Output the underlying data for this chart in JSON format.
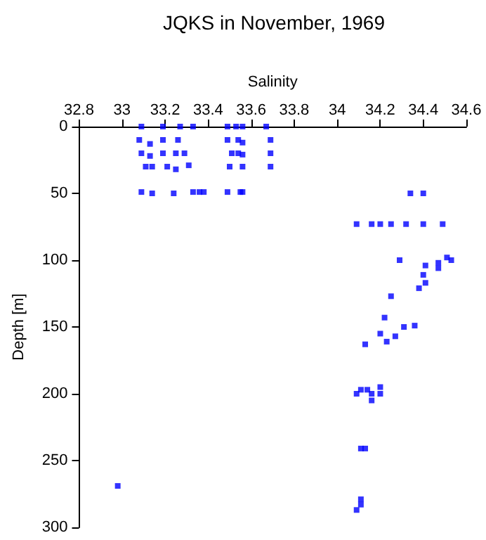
{
  "chart_data": {
    "type": "scatter",
    "title": "JQKS in November, 1969",
    "xlabel": "Salinity",
    "ylabel": "Depth [m]",
    "marker": "square",
    "grid": false,
    "xlim": [
      32.8,
      34.6
    ],
    "xticks": [
      32.8,
      33,
      33.2,
      33.4,
      33.6,
      33.8,
      34,
      34.2,
      34.4,
      34.6
    ],
    "ylim": [
      300,
      0
    ],
    "yticks": [
      0,
      50,
      100,
      150,
      200,
      250,
      300
    ],
    "series": [
      {
        "color": "#0000ff",
        "x": [
          33.09,
          33.19,
          33.27,
          33.33,
          33.49,
          33.53,
          33.56,
          33.67,
          33.08,
          33.13,
          33.19,
          33.26,
          33.49,
          33.54,
          33.56,
          33.69,
          33.09,
          33.13,
          33.19,
          33.25,
          33.29,
          33.51,
          33.54,
          33.56,
          33.69,
          33.11,
          33.14,
          33.21,
          33.25,
          33.31,
          33.5,
          33.56,
          33.69,
          33.09,
          33.14,
          33.24,
          33.33,
          33.36,
          33.38,
          33.49,
          33.55,
          33.56,
          34.34,
          34.4,
          34.09,
          34.16,
          34.2,
          34.25,
          34.32,
          34.4,
          34.49,
          34.29,
          34.41,
          34.47,
          34.47,
          34.51,
          34.53,
          34.4,
          34.41,
          34.38,
          34.25,
          34.22,
          34.31,
          34.36,
          34.2,
          34.27,
          34.23,
          34.13,
          34.09,
          34.11,
          34.14,
          34.16,
          34.2,
          34.2,
          34.16,
          34.11,
          34.13,
          34.11,
          34.11,
          34.09,
          32.98
        ],
        "values": [
          0,
          0,
          0,
          0,
          0,
          0,
          0,
          0,
          10,
          13,
          10,
          10,
          10,
          10,
          12,
          10,
          20,
          22,
          20,
          20,
          20,
          20,
          20,
          21,
          20,
          30,
          30,
          30,
          32,
          29,
          30,
          30,
          30,
          49,
          50,
          50,
          49,
          49,
          49,
          49,
          49,
          49,
          50,
          50,
          73,
          73,
          73,
          73,
          73,
          73,
          73,
          100,
          104,
          102,
          106,
          98,
          100,
          111,
          117,
          121,
          127,
          143,
          150,
          149,
          155,
          157,
          161,
          163,
          200,
          197,
          197,
          200,
          195,
          200,
          205,
          241,
          241,
          279,
          283,
          287,
          269
        ]
      }
    ]
  }
}
